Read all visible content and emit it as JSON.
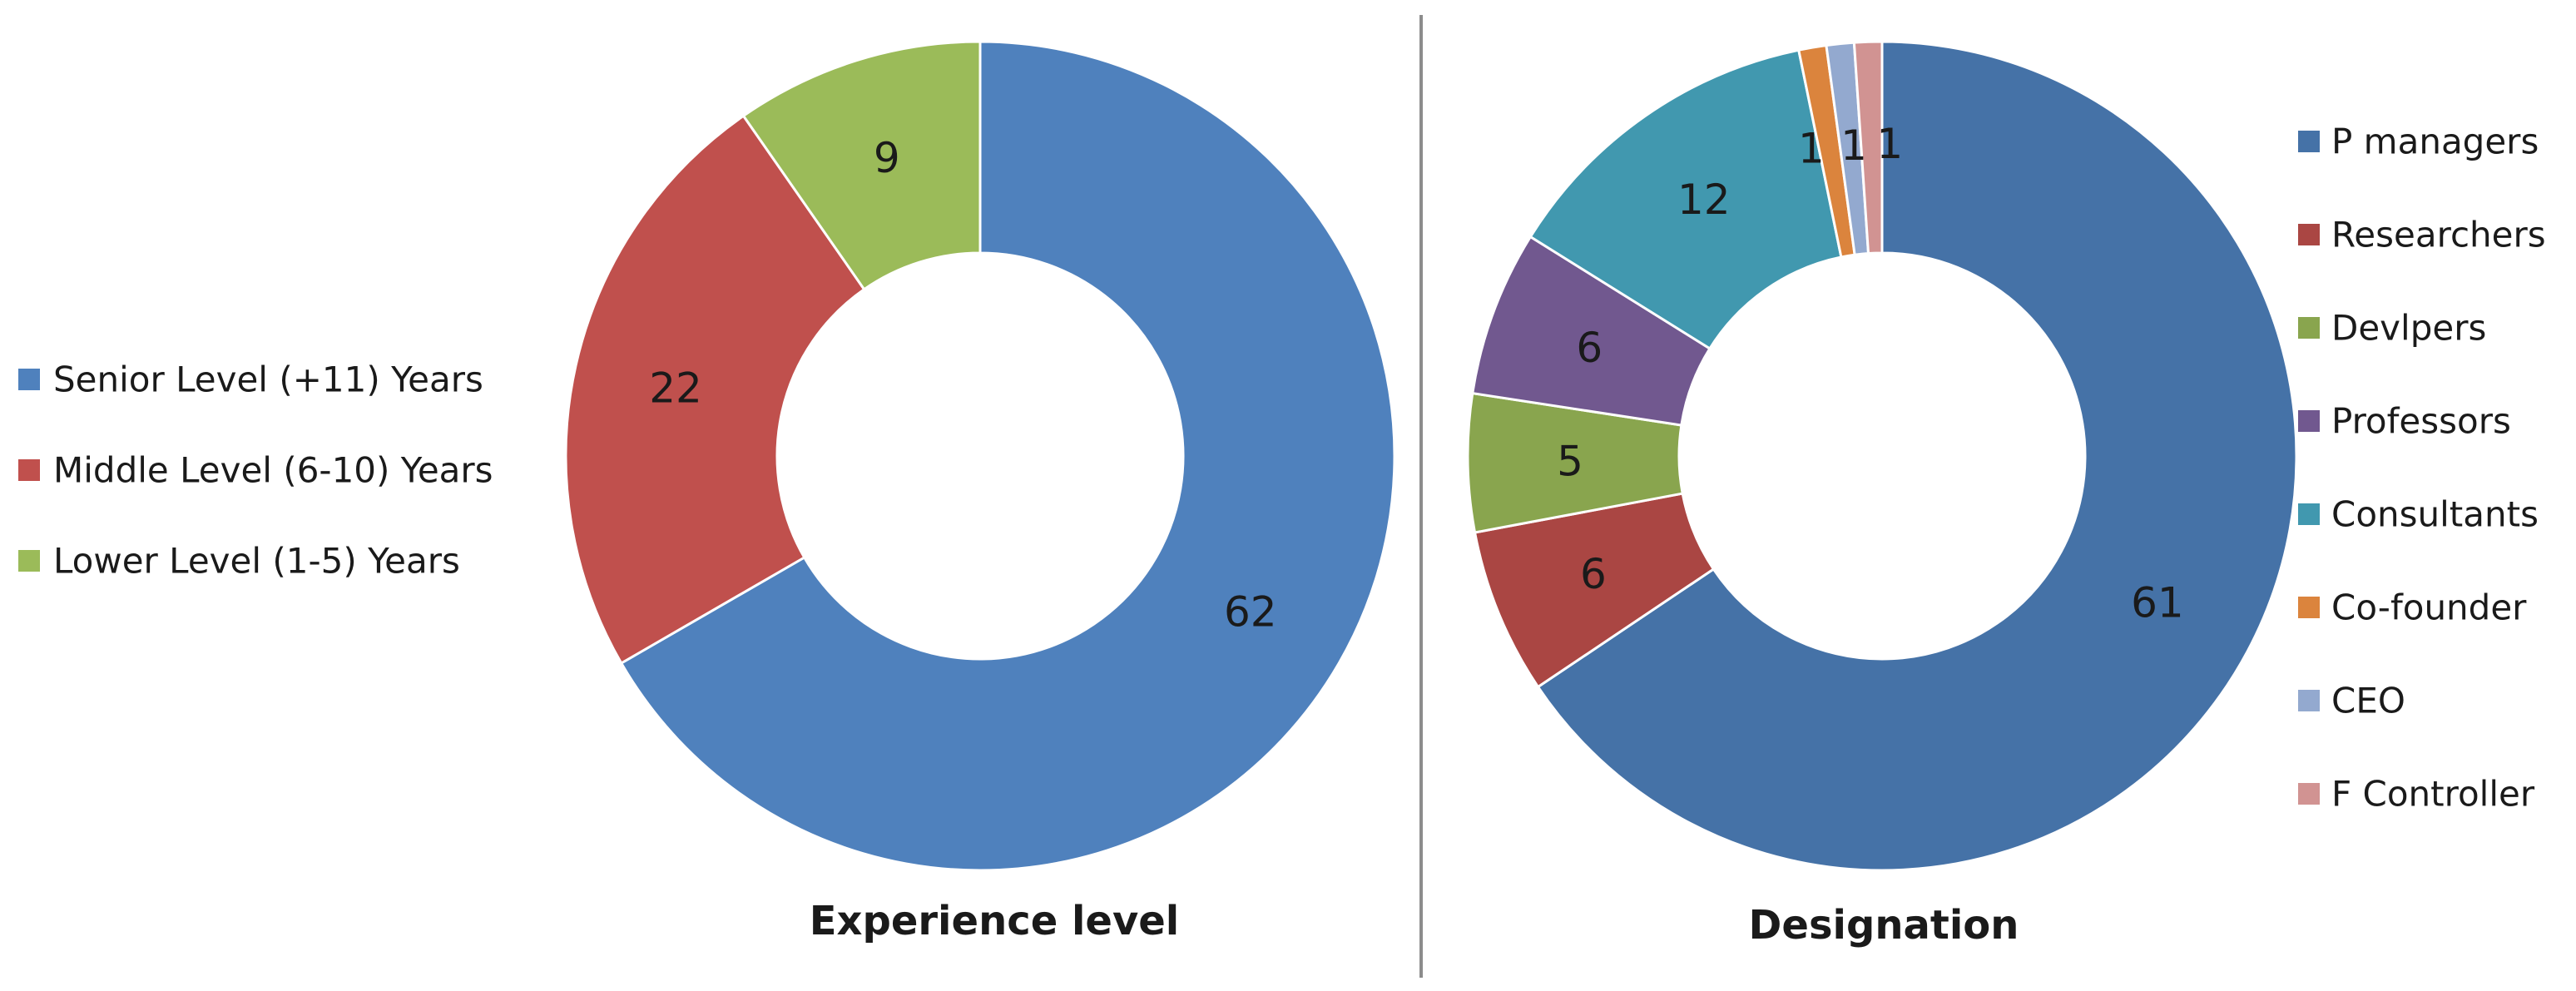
{
  "chart_data": [
    {
      "type": "pie",
      "variant": "doughnut",
      "title": "Experience level",
      "legend_position": "left",
      "categories": [
        "Senior Level (+11) Years",
        "Middle Level (6-10) Years",
        "Lower Level (1-5) Years"
      ],
      "values": [
        62,
        22,
        9
      ],
      "colors": [
        "#4F81BD",
        "#C0504D",
        "#9BBB59"
      ],
      "data_labels": [
        "62",
        "22",
        "9"
      ]
    },
    {
      "type": "pie",
      "variant": "doughnut",
      "title": "Designation",
      "legend_position": "right",
      "categories": [
        "P managers",
        "Researchers",
        "Devlpers",
        "Professors",
        "Consultants",
        "Co-founder",
        "CEO",
        "F Controller"
      ],
      "values": [
        61,
        6,
        5,
        6,
        12,
        1,
        1,
        1
      ],
      "colors": [
        "#4572A7",
        "#AA4643",
        "#89A54E",
        "#71588F",
        "#4198AF",
        "#DB843D",
        "#93A9CF",
        "#D19392"
      ],
      "data_labels": [
        "61",
        "6",
        "5",
        "6",
        "12",
        "1",
        "1",
        "1"
      ]
    }
  ]
}
